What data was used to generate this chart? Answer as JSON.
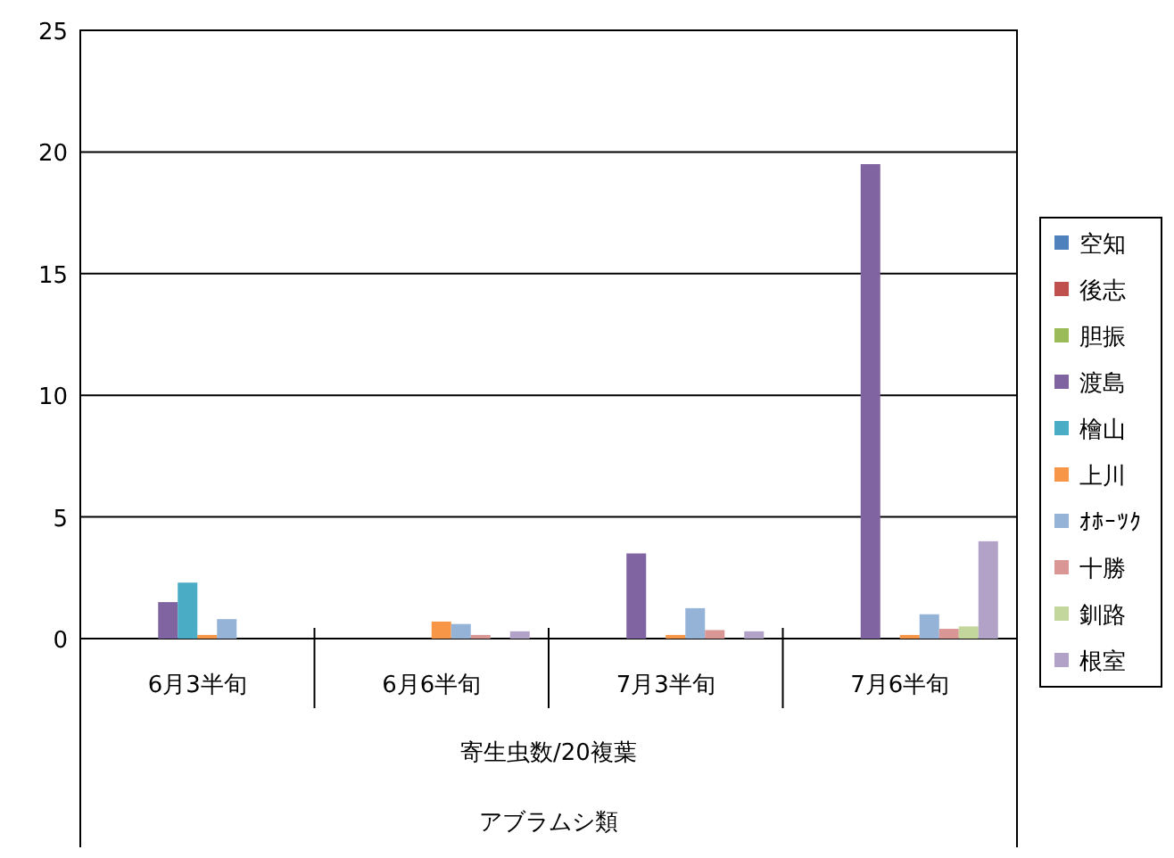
{
  "chart_data": {
    "type": "bar",
    "categories": [
      "6月3半旬",
      "6月6半旬",
      "7月3半旬",
      "7月6半旬"
    ],
    "xlabel": "寄生虫数/20複葉",
    "annotations": [
      "アブラムシ類"
    ],
    "ylim": [
      0,
      25
    ],
    "yticks": [
      0,
      5,
      10,
      15,
      20,
      25
    ],
    "grid": "y",
    "legend": "right",
    "series": [
      {
        "name": "空知",
        "color": "#4f81bd",
        "values": [
          0,
          0,
          0,
          0
        ]
      },
      {
        "name": "後志",
        "color": "#c0504d",
        "values": [
          0,
          0,
          0,
          0
        ]
      },
      {
        "name": "胆振",
        "color": "#9bbb59",
        "values": [
          0,
          0,
          0,
          0
        ]
      },
      {
        "name": "渡島",
        "color": "#8064a2",
        "values": [
          1.5,
          0,
          3.5,
          19.5
        ]
      },
      {
        "name": "檜山",
        "color": "#4bacc6",
        "values": [
          2.3,
          0,
          0,
          0
        ]
      },
      {
        "name": "上川",
        "color": "#f79646",
        "values": [
          0.15,
          0.7,
          0.15,
          0.15
        ]
      },
      {
        "name": "ｵﾎｰﾂｸ",
        "color": "#95b3d7",
        "values": [
          0.8,
          0.6,
          1.25,
          1.0
        ]
      },
      {
        "name": "十勝",
        "color": "#d99694",
        "values": [
          0,
          0.15,
          0.35,
          0.4
        ]
      },
      {
        "name": "釧路",
        "color": "#c3d69b",
        "values": [
          0,
          0,
          0,
          0.5
        ]
      },
      {
        "name": "根室",
        "color": "#b3a2c7",
        "values": [
          0,
          0.3,
          0.3,
          4.0
        ]
      }
    ]
  }
}
